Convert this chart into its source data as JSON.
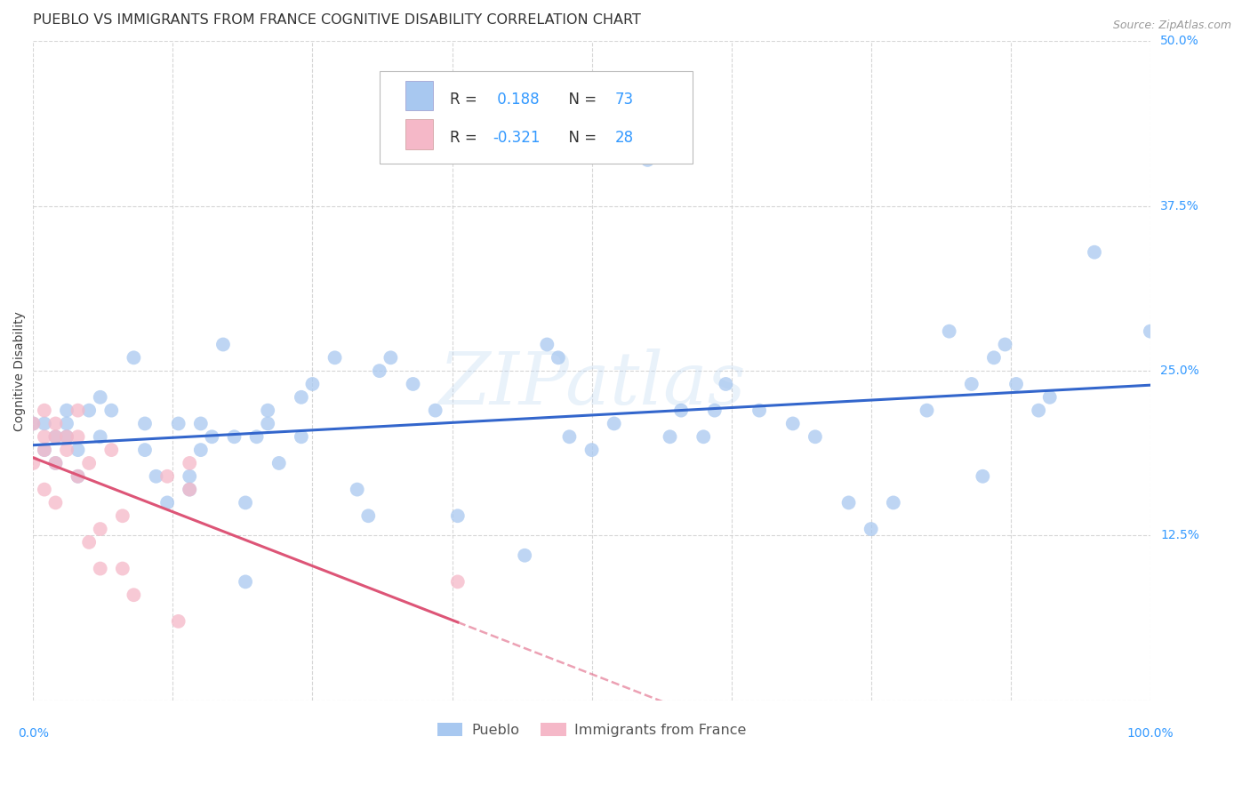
{
  "title": "PUEBLO VS IMMIGRANTS FROM FRANCE COGNITIVE DISABILITY CORRELATION CHART",
  "source": "Source: ZipAtlas.com",
  "ylabel": "Cognitive Disability",
  "watermark": "ZIPatlas",
  "xlim": [
    0.0,
    1.0
  ],
  "ylim": [
    0.0,
    0.5
  ],
  "xticks": [
    0.0,
    0.125,
    0.25,
    0.375,
    0.5,
    0.625,
    0.75,
    0.875,
    1.0
  ],
  "yticks": [
    0.0,
    0.125,
    0.25,
    0.375,
    0.5
  ],
  "yticklabels": [
    "",
    "12.5%",
    "25.0%",
    "37.5%",
    "50.0%"
  ],
  "pueblo_color": "#a8c8f0",
  "immigrants_color": "#f5b8c8",
  "pueblo_line_color": "#3366cc",
  "immigrants_line_color": "#dd5577",
  "pueblo_R": 0.188,
  "pueblo_N": 73,
  "immigrants_R": -0.321,
  "immigrants_N": 28,
  "background_color": "#ffffff",
  "grid_color": "#cccccc",
  "pueblo_x": [
    0.0,
    0.01,
    0.01,
    0.02,
    0.02,
    0.03,
    0.03,
    0.03,
    0.04,
    0.04,
    0.05,
    0.06,
    0.06,
    0.07,
    0.09,
    0.1,
    0.1,
    0.11,
    0.12,
    0.13,
    0.14,
    0.14,
    0.15,
    0.15,
    0.16,
    0.17,
    0.18,
    0.19,
    0.19,
    0.2,
    0.21,
    0.21,
    0.22,
    0.24,
    0.24,
    0.25,
    0.27,
    0.29,
    0.3,
    0.31,
    0.32,
    0.34,
    0.36,
    0.38,
    0.44,
    0.46,
    0.47,
    0.48,
    0.5,
    0.52,
    0.55,
    0.57,
    0.58,
    0.6,
    0.61,
    0.62,
    0.65,
    0.68,
    0.7,
    0.73,
    0.75,
    0.77,
    0.8,
    0.82,
    0.84,
    0.85,
    0.86,
    0.87,
    0.88,
    0.9,
    0.91,
    0.95,
    1.0
  ],
  "pueblo_y": [
    0.21,
    0.21,
    0.19,
    0.2,
    0.18,
    0.22,
    0.21,
    0.2,
    0.19,
    0.17,
    0.22,
    0.23,
    0.2,
    0.22,
    0.26,
    0.21,
    0.19,
    0.17,
    0.15,
    0.21,
    0.17,
    0.16,
    0.19,
    0.21,
    0.2,
    0.27,
    0.2,
    0.15,
    0.09,
    0.2,
    0.22,
    0.21,
    0.18,
    0.23,
    0.2,
    0.24,
    0.26,
    0.16,
    0.14,
    0.25,
    0.26,
    0.24,
    0.22,
    0.14,
    0.11,
    0.27,
    0.26,
    0.2,
    0.19,
    0.21,
    0.41,
    0.2,
    0.22,
    0.2,
    0.22,
    0.24,
    0.22,
    0.21,
    0.2,
    0.15,
    0.13,
    0.15,
    0.22,
    0.28,
    0.24,
    0.17,
    0.26,
    0.27,
    0.24,
    0.22,
    0.23,
    0.34,
    0.28
  ],
  "immigrants_x": [
    0.0,
    0.0,
    0.01,
    0.01,
    0.01,
    0.01,
    0.02,
    0.02,
    0.02,
    0.02,
    0.03,
    0.03,
    0.04,
    0.04,
    0.04,
    0.05,
    0.05,
    0.06,
    0.06,
    0.07,
    0.08,
    0.08,
    0.09,
    0.12,
    0.13,
    0.14,
    0.14,
    0.38
  ],
  "immigrants_y": [
    0.21,
    0.18,
    0.22,
    0.2,
    0.19,
    0.16,
    0.21,
    0.2,
    0.18,
    0.15,
    0.2,
    0.19,
    0.22,
    0.2,
    0.17,
    0.18,
    0.12,
    0.1,
    0.13,
    0.19,
    0.14,
    0.1,
    0.08,
    0.17,
    0.06,
    0.18,
    0.16,
    0.09
  ],
  "title_fontsize": 11.5,
  "axis_label_fontsize": 10,
  "tick_fontsize": 10,
  "legend_fontsize": 12,
  "watermark_fontsize": 60,
  "source_fontsize": 9
}
